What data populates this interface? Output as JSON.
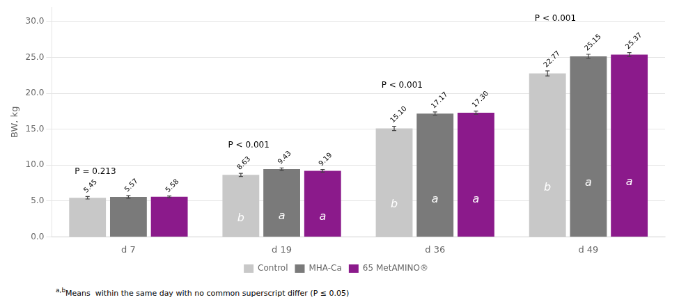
{
  "chart_data": {
    "type": "bar",
    "categories": [
      "d 7",
      "d 19",
      "d 36",
      "d 49"
    ],
    "series": [
      {
        "name": "Control",
        "color": "#c8c8c8",
        "values": [
          5.45,
          8.63,
          15.1,
          22.77
        ],
        "value_labels": [
          "5.45",
          "8.63",
          "15.10",
          "22.77"
        ],
        "errors": [
          0.18,
          0.22,
          0.3,
          0.35
        ],
        "letter_labels": [
          null,
          "b",
          "b",
          "b"
        ]
      },
      {
        "name": "MHA-Ca",
        "color": "#7a7a7a",
        "values": [
          5.57,
          9.43,
          17.17,
          25.15
        ],
        "value_labels": [
          "5.57",
          "9.43",
          "17.17",
          "25.15"
        ],
        "errors": [
          0.18,
          0.18,
          0.22,
          0.28
        ],
        "letter_labels": [
          null,
          "a",
          "a",
          "a"
        ]
      },
      {
        "name": "65 MetAMINO®",
        "color": "#8b1a8b",
        "values": [
          5.58,
          9.19,
          17.3,
          25.37
        ],
        "value_labels": [
          "5.58",
          "9.19",
          "17.30",
          "25.37"
        ],
        "errors": [
          0.12,
          0.18,
          0.22,
          0.28
        ],
        "letter_labels": [
          null,
          "a",
          "a",
          "a"
        ]
      }
    ],
    "ylabel": "BW, kg",
    "ylim": [
      0,
      32
    ],
    "yticks": [
      {
        "value": 0,
        "label": "0.0"
      },
      {
        "value": 5,
        "label": "5.0"
      },
      {
        "value": 10,
        "label": "10.0"
      },
      {
        "value": 15,
        "label": "15.0"
      },
      {
        "value": 20,
        "label": "20.0"
      },
      {
        "value": 25,
        "label": "25.0"
      },
      {
        "value": 30,
        "label": "30.0"
      }
    ],
    "grid": true,
    "legend": "bottom",
    "data_labels": true,
    "annotations": [
      {
        "text": "P = 0.213",
        "category": "d 7",
        "y": 8.5
      },
      {
        "text": "P < 0.001",
        "category": "d 19",
        "y": 12.2
      },
      {
        "text": "P < 0.001",
        "category": "d 36",
        "y": 20.5
      },
      {
        "text": "P < 0.001",
        "category": "d 49",
        "y": 29.8
      }
    ],
    "footnote_superscript": "a,b",
    "footnote": "Means  within the same day with no common superscript differ (P ≤ 0.05)"
  }
}
